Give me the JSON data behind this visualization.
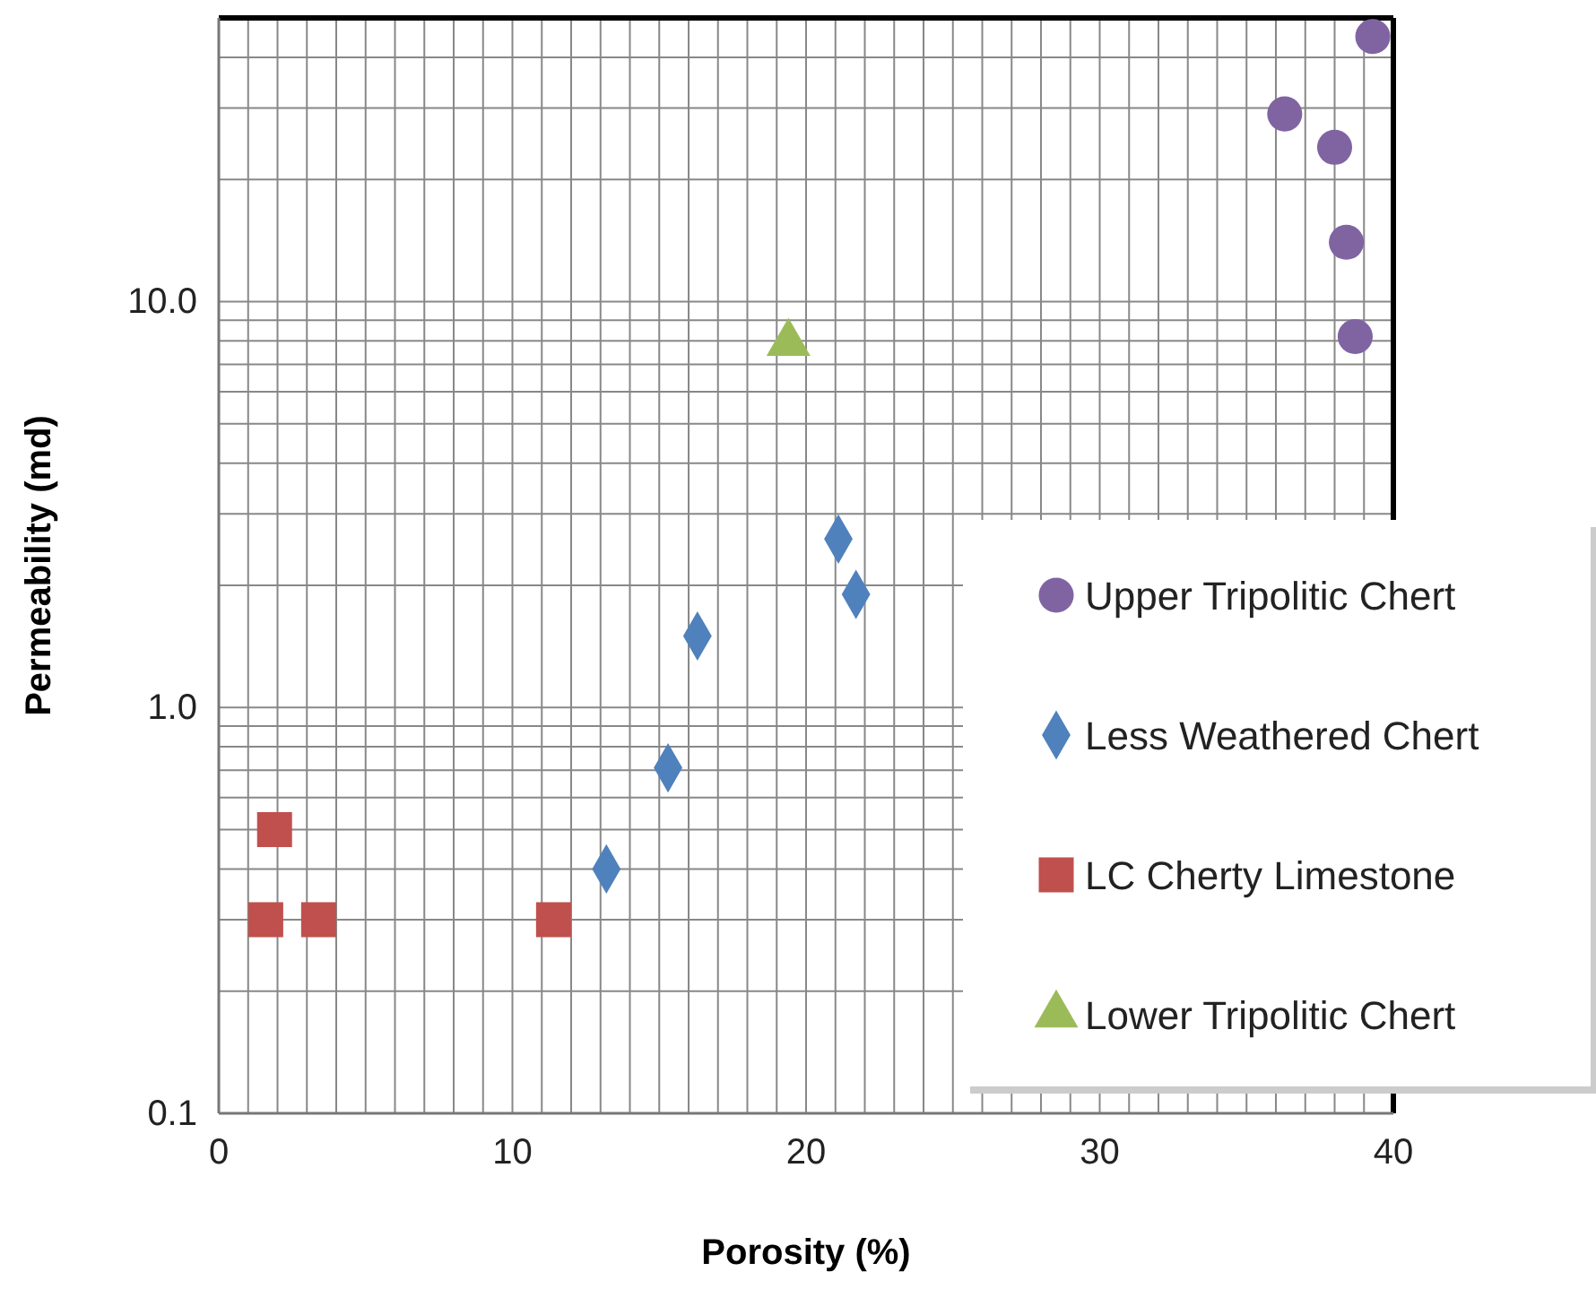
{
  "chart_data": {
    "type": "scatter",
    "xlabel": "Porosity (%)",
    "ylabel": "Permeability (md)",
    "xlim": [
      0,
      40
    ],
    "ylim": [
      0.1,
      50
    ],
    "log": "y",
    "grid": true,
    "legend": "right",
    "xticks": [
      0,
      {
        "value": 1,
        "label": null
      },
      {
        "value": 2,
        "label": null
      },
      {
        "value": 3,
        "label": null
      },
      {
        "value": 4,
        "label": null
      },
      {
        "value": 5,
        "label": null
      },
      {
        "value": 6,
        "label": null
      },
      {
        "value": 7,
        "label": null
      },
      {
        "value": 8,
        "label": null
      },
      {
        "value": 9,
        "label": null
      },
      10,
      {
        "value": 11,
        "label": null
      },
      {
        "value": 12,
        "label": null
      },
      {
        "value": 13,
        "label": null
      },
      {
        "value": 14,
        "label": null
      },
      {
        "value": 15,
        "label": null
      },
      {
        "value": 16,
        "label": null
      },
      {
        "value": 17,
        "label": null
      },
      {
        "value": 18,
        "label": null
      },
      {
        "value": 19,
        "label": null
      },
      20,
      {
        "value": 21,
        "label": null
      },
      {
        "value": 22,
        "label": null
      },
      {
        "value": 23,
        "label": null
      },
      {
        "value": 24,
        "label": null
      },
      {
        "value": 25,
        "label": null
      },
      {
        "value": 26,
        "label": null
      },
      {
        "value": 27,
        "label": null
      },
      {
        "value": 28,
        "label": null
      },
      {
        "value": 29,
        "label": null
      },
      30,
      {
        "value": 31,
        "label": null
      },
      {
        "value": 32,
        "label": null
      },
      {
        "value": 33,
        "label": null
      },
      {
        "value": 34,
        "label": null
      },
      {
        "value": 35,
        "label": null
      },
      {
        "value": 36,
        "label": null
      },
      {
        "value": 37,
        "label": null
      },
      {
        "value": 38,
        "label": null
      },
      {
        "value": 39,
        "label": null
      },
      40
    ],
    "yticks": [
      0.1,
      {
        "value": 0.2,
        "label": null
      },
      {
        "value": 0.3,
        "label": null
      },
      {
        "value": 0.4,
        "label": null
      },
      {
        "value": 0.5,
        "label": null
      },
      {
        "value": 0.6,
        "label": null
      },
      {
        "value": 0.7,
        "label": null
      },
      {
        "value": 0.8,
        "label": null
      },
      {
        "value": 0.9,
        "label": null
      },
      {
        "value": 1,
        "label": "1.0"
      },
      {
        "value": 2,
        "label": null
      },
      {
        "value": 3,
        "label": null
      },
      {
        "value": 4,
        "label": null
      },
      {
        "value": 5,
        "label": null
      },
      {
        "value": 6,
        "label": null
      },
      {
        "value": 7,
        "label": null
      },
      {
        "value": 8,
        "label": null
      },
      {
        "value": 9,
        "label": null
      },
      {
        "value": 10,
        "label": "10.0"
      },
      {
        "value": 20,
        "label": null
      },
      {
        "value": 30,
        "label": null
      },
      {
        "value": 40,
        "label": null
      },
      {
        "value": 50,
        "label": null
      }
    ],
    "series": [
      {
        "name": "Upper Tripolitic Chert",
        "color": "#8064a2",
        "marker": "circle",
        "x": [
          39.3,
          36.3,
          38.0,
          38.4,
          38.7
        ],
        "values": [
          45,
          29,
          24,
          14,
          8.2
        ]
      },
      {
        "name": "Less Weathered Chert",
        "color": "#4f81bd",
        "marker": "diamond",
        "x": [
          21.1,
          21.7,
          16.3,
          15.3,
          13.2
        ],
        "values": [
          2.6,
          1.9,
          1.5,
          0.71,
          0.4
        ]
      },
      {
        "name": "LC Cherty Limestone",
        "color": "#c0504d",
        "marker": "square",
        "x": [
          1.9,
          1.6,
          3.4,
          11.4
        ],
        "values": [
          0.5,
          0.3,
          0.3,
          0.3
        ]
      },
      {
        "name": "Lower Tripolitic Chert",
        "color": "#9bbb59",
        "marker": "triangle",
        "x": [
          19.4
        ],
        "values": [
          7.9
        ]
      }
    ]
  }
}
